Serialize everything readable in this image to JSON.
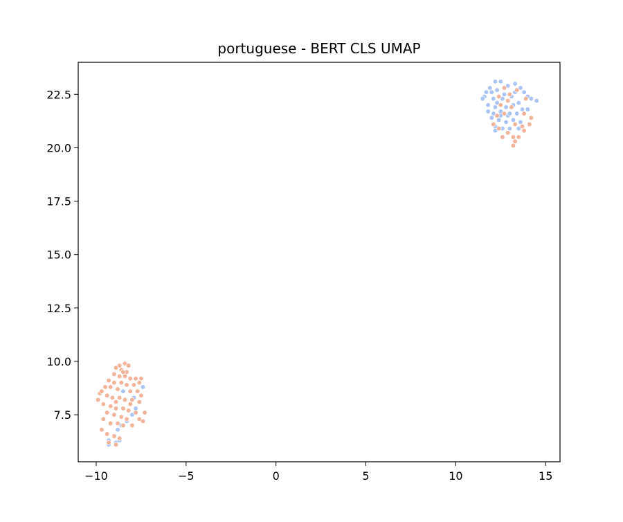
{
  "chart_data": {
    "type": "scatter",
    "title": "portuguese - BERT CLS UMAP",
    "xlabel": "",
    "ylabel": "",
    "xlim": [
      -11.0,
      15.8
    ],
    "ylim": [
      5.3,
      24.0
    ],
    "x_ticks": [
      -10,
      -5,
      0,
      5,
      10,
      15
    ],
    "x_tick_labels": [
      "−10",
      "−5",
      "0",
      "5",
      "10",
      "15"
    ],
    "y_ticks": [
      7.5,
      10.0,
      12.5,
      15.0,
      17.5,
      20.0,
      22.5
    ],
    "y_tick_labels": [
      "7.5",
      "10.0",
      "12.5",
      "15.0",
      "17.5",
      "20.0",
      "22.5"
    ],
    "grid": false,
    "legend": "none",
    "colors": {
      "blue": "#aac4f5",
      "orange": "#f2b398"
    },
    "series": [
      {
        "color": "#aac4f5",
        "points": [
          [
            12.2,
            23.1
          ],
          [
            12.5,
            23.1
          ],
          [
            11.9,
            22.8
          ],
          [
            12.3,
            22.7
          ],
          [
            12.9,
            22.9
          ],
          [
            13.3,
            23.0
          ],
          [
            13.6,
            22.8
          ],
          [
            12.0,
            22.6
          ],
          [
            12.7,
            22.5
          ],
          [
            13.8,
            22.6
          ],
          [
            11.7,
            22.6
          ],
          [
            11.6,
            22.4
          ],
          [
            11.5,
            22.3
          ],
          [
            12.1,
            22.3
          ],
          [
            12.6,
            22.3
          ],
          [
            13.1,
            22.4
          ],
          [
            14.0,
            22.4
          ],
          [
            14.2,
            22.3
          ],
          [
            14.5,
            22.2
          ],
          [
            13.5,
            22.1
          ],
          [
            11.8,
            22.0
          ],
          [
            12.2,
            21.9
          ],
          [
            12.8,
            21.9
          ],
          [
            13.2,
            22.0
          ],
          [
            13.7,
            21.8
          ],
          [
            14.0,
            21.8
          ],
          [
            11.8,
            21.7
          ],
          [
            12.1,
            21.6
          ],
          [
            12.5,
            21.7
          ],
          [
            12.9,
            21.5
          ],
          [
            13.4,
            21.6
          ],
          [
            12.0,
            21.4
          ],
          [
            12.4,
            21.3
          ],
          [
            12.8,
            21.2
          ],
          [
            13.2,
            21.3
          ],
          [
            13.6,
            21.2
          ],
          [
            12.2,
            21.0
          ],
          [
            12.6,
            20.9
          ],
          [
            13.0,
            20.9
          ],
          [
            13.5,
            20.9
          ],
          [
            12.2,
            20.8
          ],
          [
            12.5,
            21.5
          ],
          [
            13.0,
            21.6
          ],
          [
            12.3,
            22.1
          ],
          [
            13.3,
            22.6
          ],
          [
            -8.9,
            6.2
          ],
          [
            -9.3,
            6.1
          ],
          [
            -9.3,
            6.3
          ],
          [
            -8.7,
            6.3
          ],
          [
            -8.8,
            6.8
          ],
          [
            -8.6,
            7.0
          ],
          [
            -8.3,
            7.2
          ],
          [
            -8.0,
            7.5
          ],
          [
            -7.8,
            7.8
          ],
          [
            -7.4,
            8.8
          ],
          [
            -7.9,
            8.3
          ],
          [
            -8.5,
            8.6
          ]
        ]
      },
      {
        "color": "#f2b398",
        "points": [
          [
            12.7,
            22.8
          ],
          [
            13.4,
            22.7
          ],
          [
            12.4,
            22.4
          ],
          [
            13.0,
            22.5
          ],
          [
            13.9,
            22.3
          ],
          [
            12.9,
            22.2
          ],
          [
            12.5,
            22.0
          ],
          [
            13.1,
            21.9
          ],
          [
            13.8,
            21.6
          ],
          [
            14.2,
            21.4
          ],
          [
            12.3,
            21.5
          ],
          [
            12.7,
            21.6
          ],
          [
            13.3,
            21.1
          ],
          [
            13.7,
            21.0
          ],
          [
            14.1,
            21.1
          ],
          [
            12.4,
            20.9
          ],
          [
            12.9,
            20.7
          ],
          [
            13.2,
            20.5
          ],
          [
            13.5,
            20.5
          ],
          [
            12.6,
            20.5
          ],
          [
            13.3,
            20.3
          ],
          [
            13.2,
            20.1
          ],
          [
            13.8,
            20.8
          ],
          [
            12.1,
            21.1
          ],
          [
            -8.7,
            9.8
          ],
          [
            -8.4,
            9.9
          ],
          [
            -8.2,
            9.8
          ],
          [
            -8.9,
            9.7
          ],
          [
            -8.6,
            9.6
          ],
          [
            -8.3,
            9.5
          ],
          [
            -9.0,
            9.4
          ],
          [
            -8.7,
            9.3
          ],
          [
            -8.4,
            9.3
          ],
          [
            -8.1,
            9.2
          ],
          [
            -7.8,
            9.2
          ],
          [
            -7.5,
            9.2
          ],
          [
            -9.3,
            9.1
          ],
          [
            -9.0,
            9.0
          ],
          [
            -8.6,
            9.0
          ],
          [
            -8.3,
            8.9
          ],
          [
            -7.9,
            8.9
          ],
          [
            -9.5,
            8.8
          ],
          [
            -9.2,
            8.8
          ],
          [
            -8.8,
            8.7
          ],
          [
            -8.1,
            8.6
          ],
          [
            -7.7,
            8.6
          ],
          [
            -9.8,
            8.5
          ],
          [
            -9.4,
            8.4
          ],
          [
            -9.1,
            8.3
          ],
          [
            -8.7,
            8.3
          ],
          [
            -8.4,
            8.2
          ],
          [
            -8.0,
            8.2
          ],
          [
            -7.6,
            8.1
          ],
          [
            -9.9,
            8.2
          ],
          [
            -9.6,
            8.0
          ],
          [
            -9.2,
            7.9
          ],
          [
            -8.9,
            7.8
          ],
          [
            -8.5,
            7.8
          ],
          [
            -8.2,
            7.7
          ],
          [
            -7.8,
            7.6
          ],
          [
            -7.3,
            7.6
          ],
          [
            -9.4,
            7.6
          ],
          [
            -9.0,
            7.5
          ],
          [
            -8.6,
            7.4
          ],
          [
            -8.3,
            7.3
          ],
          [
            -7.6,
            7.3
          ],
          [
            -7.4,
            7.2
          ],
          [
            -9.6,
            7.3
          ],
          [
            -9.2,
            7.1
          ],
          [
            -8.8,
            7.1
          ],
          [
            -8.5,
            7.0
          ],
          [
            -8.0,
            7.0
          ],
          [
            -9.7,
            6.8
          ],
          [
            -9.4,
            6.6
          ],
          [
            -9.0,
            6.5
          ],
          [
            -8.7,
            6.4
          ],
          [
            -9.3,
            6.2
          ],
          [
            -8.9,
            6.1
          ],
          [
            -8.1,
            8.0
          ],
          [
            -7.5,
            8.4
          ],
          [
            -8.9,
            8.1
          ],
          [
            -9.7,
            8.6
          ],
          [
            -7.6,
            9.0
          ],
          [
            -8.5,
            9.5
          ]
        ]
      }
    ]
  }
}
